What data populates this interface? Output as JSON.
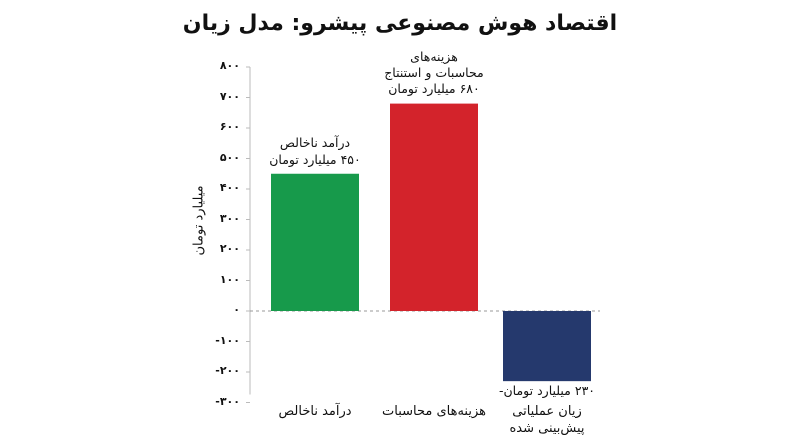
{
  "chart_data": {
    "type": "bar",
    "title": "اقتصاد هوش مصنوعی پیشرو: مدل زیان",
    "y_label": "میلیارد تومان",
    "categories": [
      "درآمد ناخالص",
      "هزینه‌های محاسبات",
      "زیان عملیاتی\nپیش‌بینی شده"
    ],
    "values": [
      450,
      680,
      -230
    ],
    "value_labels": [
      "۴۵۰ میلیارد تومان",
      "۶۸۰ میلیارد تومان",
      "۲۳۰ میلیارد تومان-"
    ],
    "annotations": [
      "درآمد ناخالص",
      "هزینه‌های\nمحاسبات و استنتاج"
    ],
    "colors": [
      "#179a4b",
      "#d3232b",
      "#25396d"
    ],
    "ylim": [
      -300,
      800
    ],
    "yticks": [
      {
        "value": 800,
        "label": "۸۰۰"
      },
      {
        "value": 700,
        "label": "۷۰۰"
      },
      {
        "value": 600,
        "label": "۶۰۰"
      },
      {
        "value": 500,
        "label": "۵۰۰"
      },
      {
        "value": 400,
        "label": "۴۰۰"
      },
      {
        "value": 300,
        "label": "۳۰۰"
      },
      {
        "value": 200,
        "label": "۲۰۰"
      },
      {
        "value": 100,
        "label": "۱۰۰"
      },
      {
        "value": 0,
        "label": "۰"
      },
      {
        "value": -100,
        "label": "-۱۰۰"
      },
      {
        "value": -200,
        "label": "-۲۰۰"
      },
      {
        "value": -300,
        "label": "-۳۰۰"
      }
    ],
    "grid": false
  }
}
